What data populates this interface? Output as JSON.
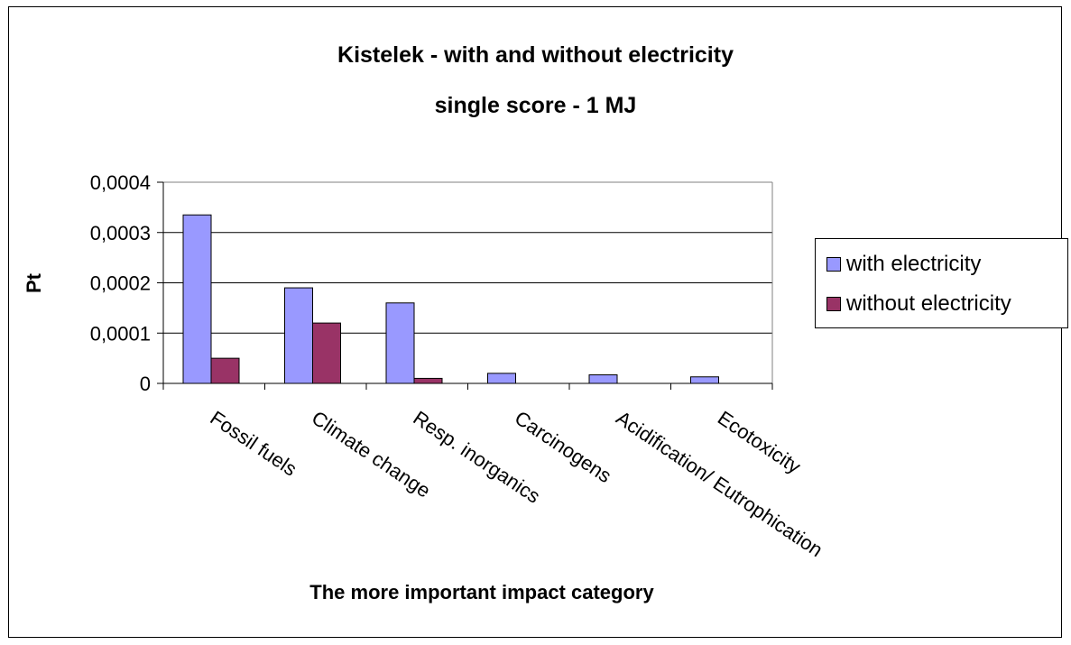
{
  "chart_data": {
    "type": "bar",
    "title": "Kistelek - with and without electricity",
    "subtitle": "single score - 1 MJ",
    "xlabel": "The more important impact category",
    "ylabel": "Pt",
    "categories": [
      "Fossil fuels",
      "Climate change",
      "Resp. inorganics",
      "Carcinogens",
      "Acidification/ Eutrophication",
      "Ecotoxicity"
    ],
    "series": [
      {
        "name": "with electricity",
        "values": [
          0.000335,
          0.00019,
          0.00016,
          2e-05,
          1.7e-05,
          1.3e-05
        ],
        "color": "#9999FF"
      },
      {
        "name": "without electricity",
        "values": [
          5e-05,
          0.00012,
          1e-05,
          0.0,
          0.0,
          0.0
        ],
        "color": "#993366"
      }
    ],
    "ylim": [
      0,
      0.0004
    ],
    "yticks": [
      "0",
      "0,0001",
      "0,0002",
      "0,0003",
      "0,0004"
    ],
    "grid": true,
    "legend_position": "right",
    "plot_background": "#FFFFFF",
    "gridline_color": "#000000"
  }
}
